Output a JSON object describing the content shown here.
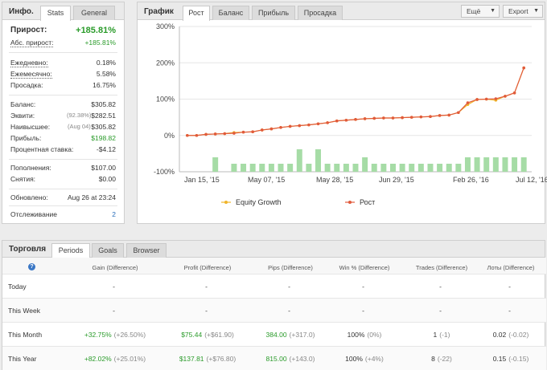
{
  "info": {
    "title": "Инфо.",
    "tabs": [
      "Stats",
      "General"
    ],
    "growth_label": "Прирост:",
    "growth_value": "+185.81%",
    "abs_growth_label": "Абс. прирост:",
    "abs_growth_value": "+185.81%",
    "daily_label": "Ежедневно:",
    "daily_value": "0.18%",
    "monthly_label": "Ежемесячно:",
    "monthly_value": "5.58%",
    "drawdown_label": "Просадка:",
    "drawdown_value": "16.75%",
    "balance_label": "Баланс:",
    "balance_value": "$305.82",
    "equity_label": "Эквити:",
    "equity_pct": "(92.38%)",
    "equity_value": "$282.51",
    "highest_label": "Наивысшее:",
    "highest_date": "(Aug 04)",
    "highest_value": "$305.82",
    "profit_label": "Прибыль:",
    "profit_value": "$198.82",
    "interest_label": "Процентная ставка:",
    "interest_value": "-$4.12",
    "deposits_label": "Пополнения:",
    "deposits_value": "$107.00",
    "withdrawals_label": "Снятия:",
    "withdrawals_value": "$0.00",
    "updated_label": "Обновлено:",
    "updated_value": "Aug 26 at 23:24",
    "tracking_label": "Отслеживание",
    "tracking_value": "2"
  },
  "chart": {
    "title": "График",
    "tabs": [
      "Рост",
      "Баланс",
      "Прибыль",
      "Просадка"
    ],
    "more_button": "Ещё",
    "export_button": "Export",
    "legend": [
      "Equity Growth",
      "Рост"
    ],
    "colors": {
      "equity": "#f0b429",
      "growth": "#e15a3c",
      "bars": "#a6dca6"
    }
  },
  "chart_data": {
    "type": "line",
    "yticks": [
      "300%",
      "200%",
      "100%",
      "0%",
      "-100%"
    ],
    "ylim": [
      -100,
      300
    ],
    "xticks": [
      "Jan 15, '15",
      "May 07, '15",
      "May 28, '15",
      "Jun 29, '15",
      "Feb 26, '16",
      "Jul 12, '16"
    ],
    "series": [
      {
        "name": "Рост",
        "values": [
          0,
          0,
          3,
          4,
          5,
          6,
          9,
          10,
          15,
          18,
          22,
          25,
          27,
          29,
          32,
          35,
          40,
          42,
          44,
          46,
          47,
          48,
          48,
          49,
          50,
          51,
          52,
          55,
          56,
          63,
          90,
          99,
          100,
          101,
          108,
          117,
          186
        ]
      },
      {
        "name": "Equity Growth",
        "values": [
          0,
          0,
          3,
          4,
          5,
          8,
          9,
          10,
          15,
          18,
          22,
          25,
          27,
          29,
          32,
          35,
          40,
          42,
          44,
          46,
          47,
          48,
          48,
          49,
          50,
          51,
          52,
          55,
          56,
          63,
          85,
          99,
          100,
          97,
          108,
          117,
          186
        ]
      }
    ],
    "bars": [
      0,
      0,
      0,
      2,
      0,
      1,
      1,
      1,
      1,
      1,
      1,
      1,
      3,
      1,
      3,
      1,
      1,
      1,
      1,
      2,
      1,
      1,
      1,
      1,
      1,
      1,
      1,
      1,
      1,
      1,
      2,
      2,
      2,
      2,
      2,
      2,
      2
    ]
  },
  "trading": {
    "title": "Торговля",
    "tabs": [
      "Periods",
      "Goals",
      "Browser"
    ],
    "help_icon": "?",
    "headers": [
      "Gain (Difference)",
      "Profit (Difference)",
      "Pips (Difference)",
      "Win % (Difference)",
      "Trades (Difference)",
      "Лоты (Difference)"
    ],
    "rows": [
      {
        "label": "Today",
        "gain": "-",
        "gain_diff": "",
        "profit": "-",
        "profit_diff": "",
        "pips": "-",
        "pips_diff": "",
        "win": "-",
        "win_diff": "",
        "trades": "-",
        "trades_diff": "",
        "lots": "-",
        "lots_diff": ""
      },
      {
        "label": "This Week",
        "gain": "-",
        "gain_diff": "",
        "profit": "-",
        "profit_diff": "",
        "pips": "-",
        "pips_diff": "",
        "win": "-",
        "win_diff": "",
        "trades": "-",
        "trades_diff": "",
        "lots": "-",
        "lots_diff": ""
      },
      {
        "label": "This Month",
        "gain": "+32.75%",
        "gain_diff": "(+26.50%)",
        "profit": "$75.44",
        "profit_diff": "(+$61.90)",
        "pips": "384.00",
        "pips_diff": "(+317.0)",
        "win": "100%",
        "win_diff": "(0%)",
        "trades": "1",
        "trades_diff": "(-1)",
        "lots": "0.02",
        "lots_diff": "(-0.02)"
      },
      {
        "label": "This Year",
        "gain": "+82.02%",
        "gain_diff": "(+25.01%)",
        "profit": "$137.81",
        "profit_diff": "(+$76.80)",
        "pips": "815.00",
        "pips_diff": "(+143.0)",
        "win": "100%",
        "win_diff": "(+4%)",
        "trades": "8",
        "trades_diff": "(-22)",
        "lots": "0.15",
        "lots_diff": "(-0.15)"
      }
    ]
  }
}
